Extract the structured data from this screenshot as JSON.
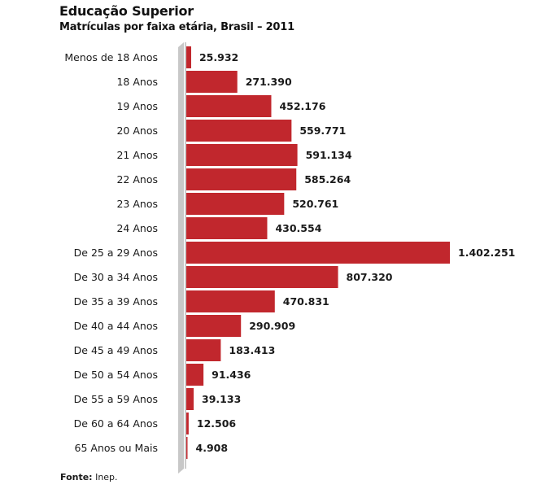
{
  "header": {
    "title": "Educação Superior",
    "subtitle": "Matrículas por faixa etária, Brasil – 2011"
  },
  "source": {
    "label": "Fonte:",
    "text": " Inep."
  },
  "colors": {
    "bar": "#c1272d",
    "axis": "#c8c8c8"
  },
  "chart_data": {
    "type": "bar",
    "orientation": "horizontal",
    "categories": [
      "Menos de 18 Anos",
      "18 Anos",
      "19 Anos",
      "20 Anos",
      "21 Anos",
      "22 Anos",
      "23 Anos",
      "24 Anos",
      "De 25 a 29 Anos",
      "De 30 a 34 Anos",
      "De 35 a 39 Anos",
      "De 40 a 44 Anos",
      "De 45 a 49 Anos",
      "De 50 a 54 Anos",
      "De 55 a 59 Anos",
      "De 60 a 64 Anos",
      "65 Anos ou Mais"
    ],
    "values": [
      25932,
      271390,
      452176,
      559771,
      591134,
      585264,
      520761,
      430554,
      1402251,
      807320,
      470831,
      290909,
      183413,
      91436,
      39133,
      12506,
      4908
    ],
    "value_labels": [
      "25.932",
      "271.390",
      "452.176",
      "559.771",
      "591.134",
      "585.264",
      "520.761",
      "430.554",
      "1.402.251",
      "807.320",
      "470.831",
      "290.909",
      "183.413",
      "91.436",
      "39.133",
      "12.506",
      "4.908"
    ],
    "title": "Educação Superior",
    "subtitle": "Matrículas por faixa etária, Brasil – 2011",
    "xlabel": "",
    "ylabel": "",
    "grid": false,
    "legend": "none"
  }
}
